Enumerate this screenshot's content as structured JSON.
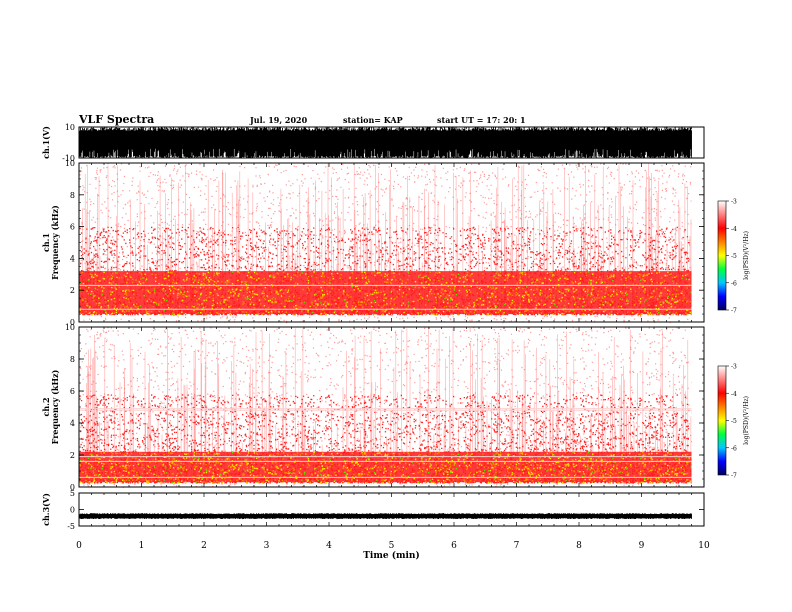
{
  "header": {
    "title": "VLF Spectra",
    "date": "Jul. 19, 2020",
    "station": "station= KAP",
    "start": "start UT = 17: 20: 1"
  },
  "chart_data": [
    {
      "type": "line",
      "panel": "ch1-waveform",
      "ylabel": "ch.1(V)",
      "ylim": [
        -10,
        10
      ],
      "ytick_labels": [
        "10",
        "-10"
      ],
      "xlim": [
        0,
        10
      ],
      "note_series": "dense black waveform spanning roughly -9 to +10 V from 0 to 9.8 min"
    },
    {
      "type": "heatmap",
      "panel": "ch1-spectrogram",
      "ylabel": "ch.1 Frequency (kHz)",
      "ylim": [
        0,
        10
      ],
      "ytick_labels": [
        "0",
        "2",
        "4",
        "6",
        "8",
        "10"
      ],
      "xlim": [
        0,
        10
      ],
      "data_extent_min": 9.8,
      "intense_band_khz": [
        0.5,
        3.2
      ],
      "horizontal_lines_khz": [
        2.3,
        0.8
      ],
      "colorbar": {
        "label": "log(PSD)(V²/Hz)",
        "range": [
          -7,
          -3
        ],
        "tick_labels": [
          "-3",
          "-4",
          "-5",
          "-6",
          "-7"
        ],
        "colors": [
          "#000060",
          "#0000ff",
          "#00c8ff",
          "#00ff40",
          "#ffff00",
          "#ff8000",
          "#ff0000",
          "#ff8080",
          "#ffffff"
        ]
      }
    },
    {
      "type": "heatmap",
      "panel": "ch2-spectrogram",
      "ylabel": "ch.2 Frequency (kHz)",
      "ylim": [
        0,
        10
      ],
      "ytick_labels": [
        "0",
        "2",
        "4",
        "6",
        "8",
        "10"
      ],
      "xlim": [
        0,
        10
      ],
      "data_extent_min": 9.8,
      "intense_band_khz": [
        0.3,
        2.2
      ],
      "horizontal_lines_khz": [
        4.9,
        4.8,
        1.9,
        1.6,
        0.6
      ],
      "colorbar": {
        "label": "log(PSD)(V²/Hz)",
        "range": [
          -7,
          -3
        ],
        "tick_labels": [
          "-3",
          "-4",
          "-5",
          "-6",
          "-7"
        ],
        "colors": [
          "#000060",
          "#0000ff",
          "#00c8ff",
          "#00ff40",
          "#ffff00",
          "#ff8000",
          "#ff0000",
          "#ff8080",
          "#ffffff"
        ]
      }
    },
    {
      "type": "line",
      "panel": "ch3-waveform",
      "ylabel": "ch.3(V)",
      "ylim": [
        -5,
        5
      ],
      "ytick_labels": [
        "5",
        "0",
        "-5"
      ],
      "xlim": [
        0,
        10
      ],
      "baseline_v": -2,
      "note_series": "narrow black band near -2 V from 0 to 9.8 min"
    }
  ],
  "x_axis": {
    "label": "Time (min)",
    "range": [
      0,
      10
    ],
    "tick_labels": [
      "0",
      "1",
      "2",
      "3",
      "4",
      "5",
      "6",
      "7",
      "8",
      "9",
      "10"
    ]
  },
  "colors": {
    "axis": "#000000",
    "trace": "#000000",
    "background": "#ffffff"
  }
}
